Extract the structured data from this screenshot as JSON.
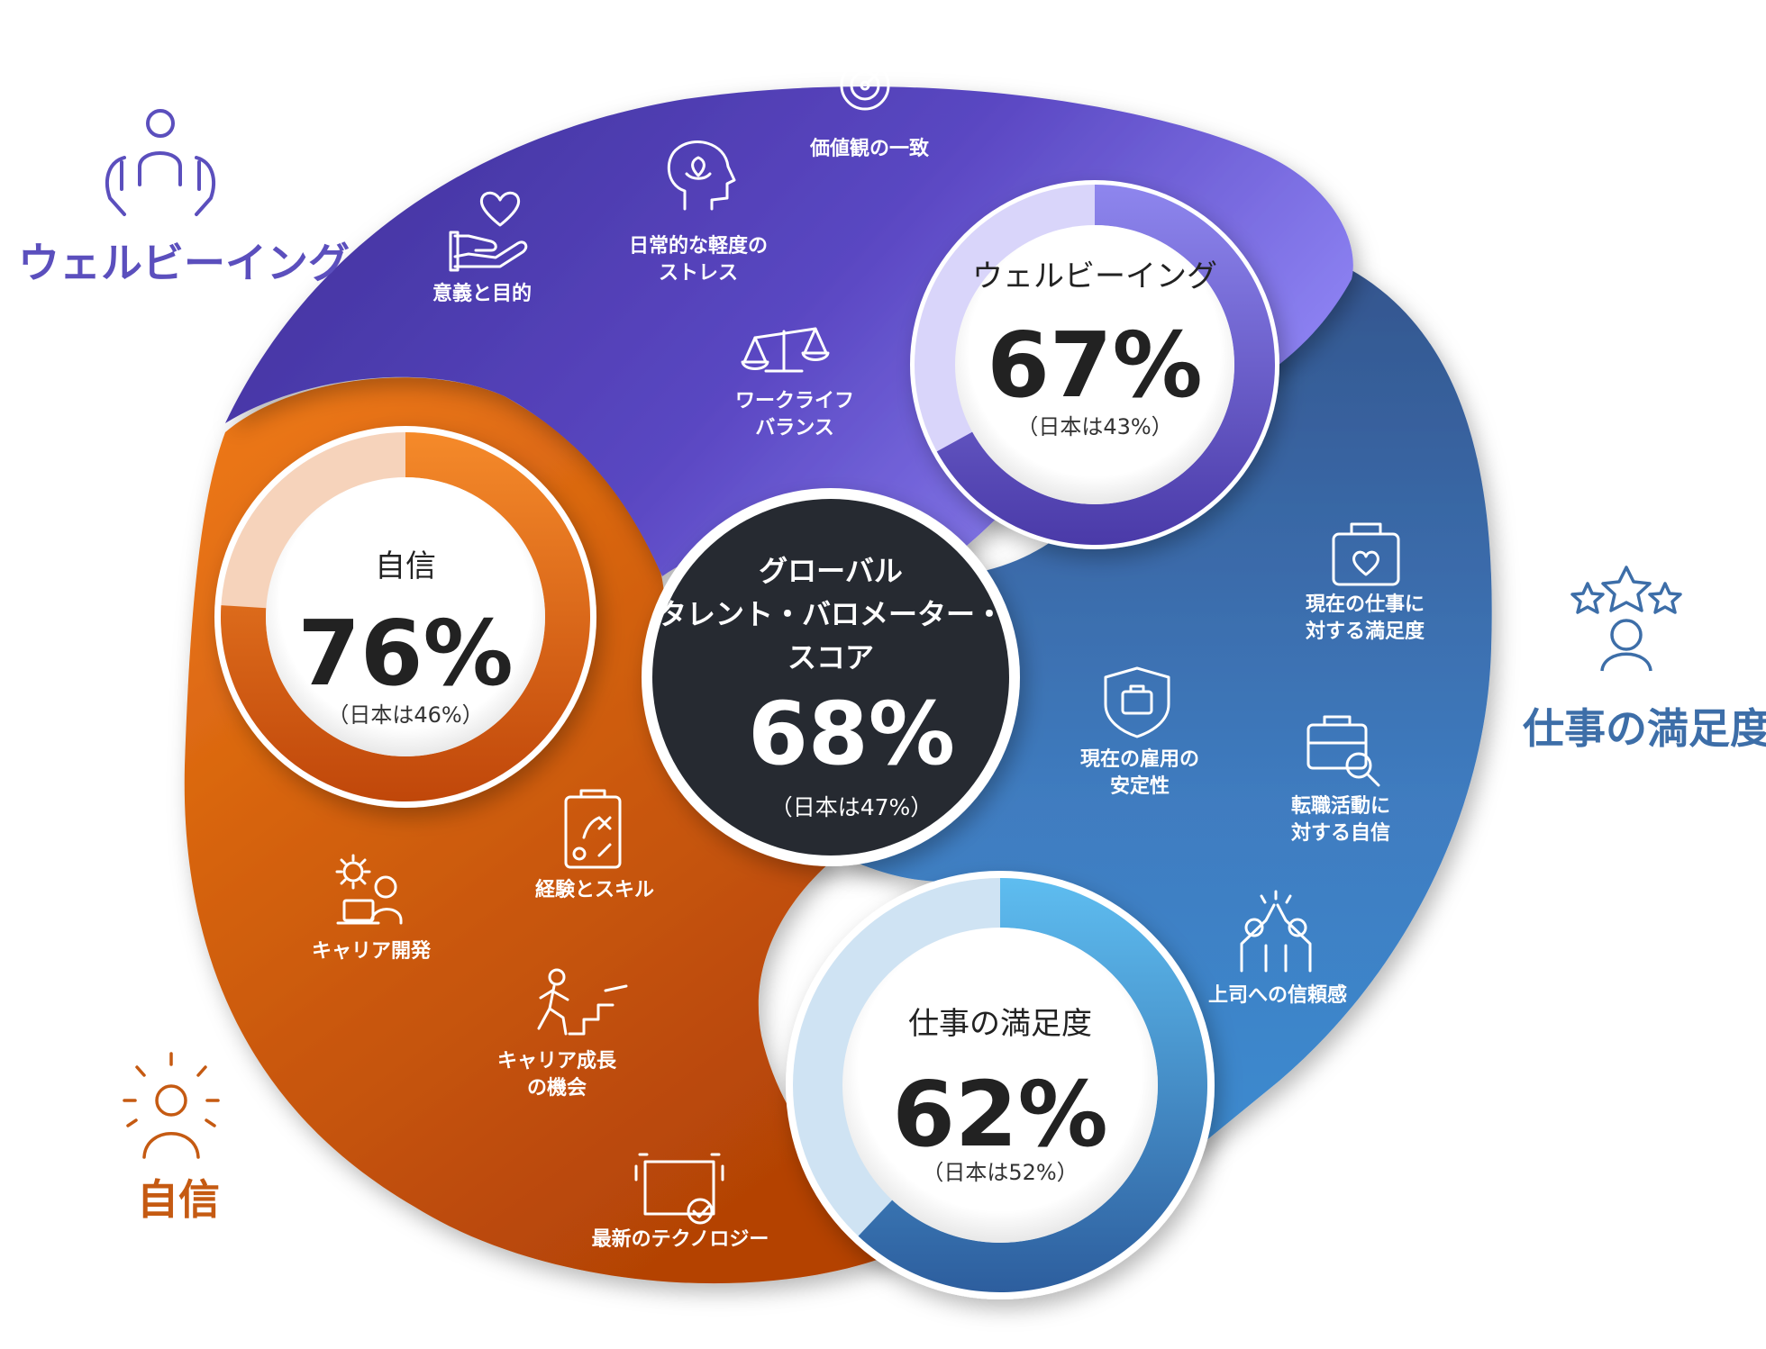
{
  "side_labels": {
    "wellbeing": "ウェルビーイング",
    "job_satisfaction": "仕事の満足度",
    "confidence": "自信"
  },
  "center": {
    "title_lines": [
      "グローバル",
      "タレント・バロメーター・",
      "スコア"
    ],
    "value": "68%",
    "japan": "（日本は47%）"
  },
  "rings": {
    "wellbeing": {
      "title": "ウェルビーイング",
      "value": "67%",
      "japan": "（日本は43%）",
      "fill": 0.67
    },
    "confidence": {
      "title": "自信",
      "value": "76%",
      "japan": "（日本は46%）",
      "fill": 0.76
    },
    "job_satisfaction": {
      "title": "仕事の満足度",
      "value": "62%",
      "japan": "（日本は52%）",
      "fill": 0.62
    }
  },
  "factors": {
    "wellbeing": [
      {
        "icon": "target-icon",
        "lines": [
          "価値観の一致"
        ]
      },
      {
        "icon": "head-lotus-icon",
        "lines": [
          "日常的な軽度の",
          "ストレス"
        ]
      },
      {
        "icon": "heart-hand-icon",
        "lines": [
          "意義と目的"
        ]
      },
      {
        "icon": "scales-icon",
        "lines": [
          "ワークライフ",
          "バランス"
        ]
      }
    ],
    "job_satisfaction": [
      {
        "icon": "briefcase-heart-icon",
        "lines": [
          "現在の仕事に",
          "対する満足度"
        ]
      },
      {
        "icon": "shield-briefcase-icon",
        "lines": [
          "現在の雇用の",
          "安定性"
        ]
      },
      {
        "icon": "briefcase-search-icon",
        "lines": [
          "転職活動に",
          "対する自信"
        ]
      },
      {
        "icon": "high-five-icon",
        "lines": [
          "上司への信頼感"
        ]
      }
    ],
    "confidence": [
      {
        "icon": "strategy-board-icon",
        "lines": [
          "経験とスキル"
        ]
      },
      {
        "icon": "gear-person-laptop-icon",
        "lines": [
          "キャリア開発"
        ]
      },
      {
        "icon": "person-stairs-icon",
        "lines": [
          "キャリア成長",
          "の機会"
        ]
      },
      {
        "icon": "laptop-check-icon",
        "lines": [
          "最新のテクノロジー"
        ]
      }
    ]
  },
  "colors": {
    "wellbeing": "#5a48c0",
    "job_satisfaction": "#3f76b4",
    "confidence": "#d9620f",
    "center": "#262a31",
    "wellbeing_label": "#5b4fbd",
    "job_label": "#3d6ea8",
    "confidence_label": "#c55a12"
  }
}
